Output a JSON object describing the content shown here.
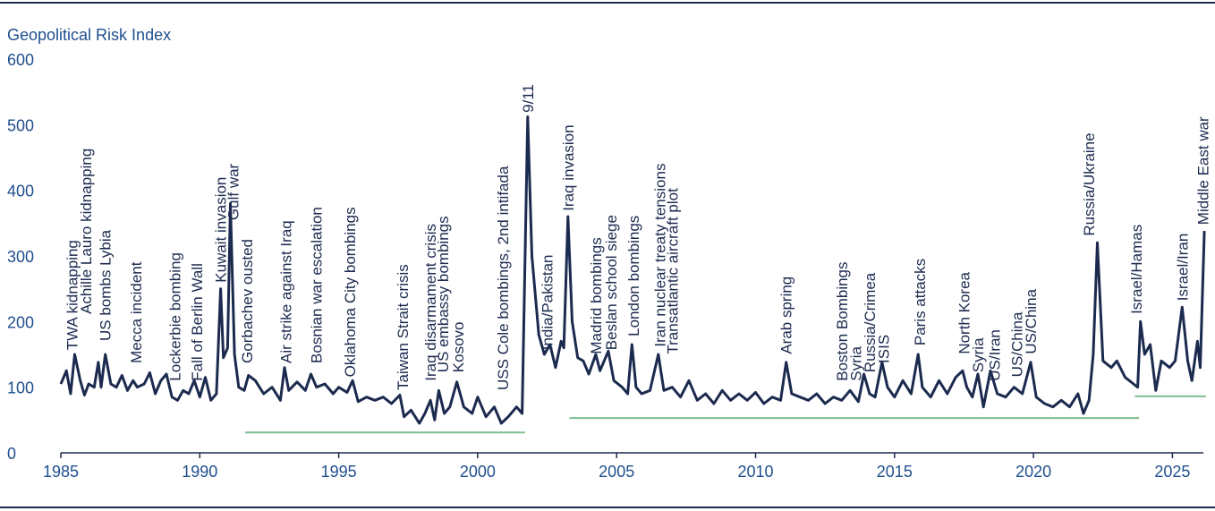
{
  "chart_data": {
    "type": "line",
    "title": "Geopolitical Risk Index",
    "xlim": [
      1985,
      2026.5
    ],
    "ylim": [
      0,
      600
    ],
    "xticks": [
      1985,
      1990,
      1995,
      2000,
      2005,
      2010,
      2015,
      2020,
      2025
    ],
    "yticks": [
      0,
      100,
      200,
      300,
      400,
      500,
      600
    ],
    "series": [
      {
        "color": "#1c2a4f",
        "x": [
          1985.0,
          1985.2,
          1985.35,
          1985.5,
          1985.7,
          1985.85,
          1986.0,
          1986.2,
          1986.35,
          1986.45,
          1986.6,
          1986.8,
          1987.0,
          1987.2,
          1987.4,
          1987.6,
          1987.75,
          1988.0,
          1988.2,
          1988.4,
          1988.6,
          1988.8,
          1989.0,
          1989.2,
          1989.4,
          1989.6,
          1989.8,
          1990.0,
          1990.2,
          1990.4,
          1990.6,
          1990.75,
          1990.85,
          1991.0,
          1991.1,
          1991.25,
          1991.4,
          1991.6,
          1991.75,
          1992.0,
          1992.3,
          1992.6,
          1992.9,
          1993.05,
          1993.2,
          1993.5,
          1993.8,
          1994.0,
          1994.2,
          1994.5,
          1994.8,
          1995.0,
          1995.3,
          1995.5,
          1995.7,
          1996.0,
          1996.3,
          1996.6,
          1996.9,
          1997.2,
          1997.35,
          1997.6,
          1997.9,
          1998.1,
          1998.3,
          1998.45,
          1998.6,
          1998.8,
          1999.0,
          1999.25,
          1999.5,
          1999.8,
          2000.0,
          2000.3,
          2000.6,
          2000.85,
          2001.1,
          2001.4,
          2001.6,
          2001.8,
          2001.95,
          2002.2,
          2002.4,
          2002.6,
          2002.8,
          2003.0,
          2003.1,
          2003.25,
          2003.4,
          2003.6,
          2003.8,
          2004.0,
          2004.25,
          2004.4,
          2004.7,
          2004.9,
          2005.2,
          2005.4,
          2005.55,
          2005.7,
          2005.9,
          2006.2,
          2006.5,
          2006.7,
          2007.0,
          2007.3,
          2007.6,
          2007.9,
          2008.2,
          2008.5,
          2008.8,
          2009.1,
          2009.4,
          2009.7,
          2010.0,
          2010.3,
          2010.6,
          2010.9,
          2011.1,
          2011.3,
          2011.6,
          2011.9,
          2012.2,
          2012.5,
          2012.8,
          2013.1,
          2013.4,
          2013.7,
          2013.9,
          2014.1,
          2014.3,
          2014.55,
          2014.75,
          2015.0,
          2015.3,
          2015.6,
          2015.85,
          2016.0,
          2016.3,
          2016.6,
          2016.9,
          2017.2,
          2017.45,
          2017.6,
          2017.8,
          2018.0,
          2018.2,
          2018.45,
          2018.7,
          2019.0,
          2019.3,
          2019.6,
          2019.9,
          2020.1,
          2020.4,
          2020.7,
          2021.0,
          2021.3,
          2021.6,
          2021.8,
          2022.0,
          2022.15,
          2022.3,
          2022.5,
          2022.8,
          2023.0,
          2023.3,
          2023.6,
          2023.75,
          2023.85,
          2024.0,
          2024.2,
          2024.4,
          2024.6,
          2024.9,
          2025.1,
          2025.35,
          2025.55,
          2025.7,
          2025.9,
          2026.0,
          2026.15
        ],
        "values": [
          105,
          125,
          90,
          150,
          110,
          88,
          105,
          100,
          138,
          100,
          150,
          105,
          100,
          118,
          95,
          110,
          100,
          105,
          122,
          90,
          110,
          120,
          85,
          80,
          95,
          90,
          110,
          85,
          115,
          80,
          90,
          250,
          145,
          160,
          380,
          150,
          100,
          95,
          118,
          110,
          90,
          100,
          80,
          130,
          95,
          108,
          95,
          120,
          100,
          105,
          90,
          100,
          92,
          110,
          78,
          85,
          80,
          85,
          75,
          88,
          55,
          65,
          45,
          60,
          80,
          50,
          95,
          60,
          70,
          108,
          70,
          60,
          85,
          55,
          70,
          45,
          55,
          70,
          60,
          512,
          300,
          180,
          150,
          165,
          130,
          170,
          160,
          360,
          200,
          145,
          140,
          120,
          150,
          125,
          155,
          110,
          100,
          90,
          165,
          100,
          90,
          95,
          150,
          95,
          100,
          85,
          110,
          80,
          90,
          75,
          95,
          80,
          90,
          80,
          92,
          75,
          85,
          80,
          138,
          90,
          85,
          80,
          90,
          75,
          85,
          80,
          95,
          78,
          120,
          90,
          85,
          138,
          100,
          85,
          110,
          90,
          150,
          100,
          85,
          110,
          90,
          115,
          125,
          100,
          85,
          120,
          70,
          125,
          90,
          85,
          100,
          90,
          138,
          85,
          75,
          70,
          80,
          70,
          90,
          60,
          80,
          150,
          320,
          140,
          130,
          140,
          115,
          105,
          100,
          200,
          150,
          165,
          95,
          140,
          130,
          140,
          222,
          140,
          110,
          170,
          130,
          338
        ]
      }
    ],
    "reference_lines": [
      {
        "color": "#7dbf8e",
        "x": [
          1991.63,
          2001.7
        ],
        "value": 31
      },
      {
        "color": "#7dbf8e",
        "x": [
          2003.3,
          2023.8
        ],
        "value": 53
      },
      {
        "color": "#7dbf8e",
        "x": [
          2023.65,
          2026.2
        ],
        "value": 86
      }
    ],
    "annotations": [
      {
        "text": "TWA kidnapping",
        "x": 1985.4,
        "y": 151
      },
      {
        "text": "Achille Lauro kidnapping",
        "x": 1985.9,
        "y": 206
      },
      {
        "text": "US bombs Lybia",
        "x": 1986.6,
        "y": 165
      },
      {
        "text": "Mecca incident",
        "x": 1987.7,
        "y": 131
      },
      {
        "text": "Lockerbie bombing",
        "x": 1989.1,
        "y": 104
      },
      {
        "text": "Fall of Berlin Wall",
        "x": 1989.9,
        "y": 104
      },
      {
        "text": "Kuwait invasion",
        "x": 1990.75,
        "y": 254
      },
      {
        "text": "Gulf war",
        "x": 1991.2,
        "y": 349
      },
      {
        "text": "Gorbachev ousted",
        "x": 1991.7,
        "y": 131
      },
      {
        "text": "Air strike against Iraq",
        "x": 1993.1,
        "y": 131
      },
      {
        "text": "Bosnian war escalation",
        "x": 1994.2,
        "y": 131
      },
      {
        "text": "Oklahoma City bombings",
        "x": 1995.4,
        "y": 110
      },
      {
        "text": "Taiwan Strait crisis",
        "x": 1997.3,
        "y": 90
      },
      {
        "text": "Iraq disarmament crisis",
        "x": 1998.3,
        "y": 104
      },
      {
        "text": "US embassy bombings",
        "x": 1998.75,
        "y": 117
      },
      {
        "text": "Kosovo",
        "x": 1999.3,
        "y": 117
      },
      {
        "text": "USS Cole bombings, 2nd intifada",
        "x": 2000.9,
        "y": 90
      },
      {
        "text": "9/11",
        "x": 2001.8,
        "y": 513
      },
      {
        "text": "India/Pakistan",
        "x": 2002.5,
        "y": 151
      },
      {
        "text": "Iraq invasion",
        "x": 2003.25,
        "y": 363
      },
      {
        "text": "Madrid bombings",
        "x": 2004.25,
        "y": 145
      },
      {
        "text": "Beslan school siege",
        "x": 2004.8,
        "y": 151
      },
      {
        "text": "London bombings",
        "x": 2005.6,
        "y": 172
      },
      {
        "text": "Iran nuclear treaty tensions",
        "x": 2006.55,
        "y": 156
      },
      {
        "text": "Transatlantic aircraft plot",
        "x": 2007.0,
        "y": 145
      },
      {
        "text": "Arab spring",
        "x": 2011.1,
        "y": 145
      },
      {
        "text": "Boston Bombings",
        "x": 2013.1,
        "y": 104
      },
      {
        "text": "Syria",
        "x": 2013.6,
        "y": 104
      },
      {
        "text": "Russia/Crimea",
        "x": 2014.1,
        "y": 117
      },
      {
        "text": "ISIS",
        "x": 2014.6,
        "y": 131
      },
      {
        "text": "Paris attacks",
        "x": 2015.9,
        "y": 158
      },
      {
        "text": "North Korea",
        "x": 2017.5,
        "y": 145
      },
      {
        "text": "Syria",
        "x": 2018.0,
        "y": 117
      },
      {
        "text": "US/Iran",
        "x": 2018.6,
        "y": 104
      },
      {
        "text": "US/China",
        "x": 2019.4,
        "y": 110
      },
      {
        "text": "US/China",
        "x": 2019.9,
        "y": 145
      },
      {
        "text": "Russia/Ukraine",
        "x": 2022.0,
        "y": 325
      },
      {
        "text": "Israel/Hamas",
        "x": 2023.7,
        "y": 206
      },
      {
        "text": "Israel/Iran",
        "x": 2025.35,
        "y": 226
      },
      {
        "text": "Middle East war",
        "x": 2026.1,
        "y": 342
      }
    ]
  }
}
